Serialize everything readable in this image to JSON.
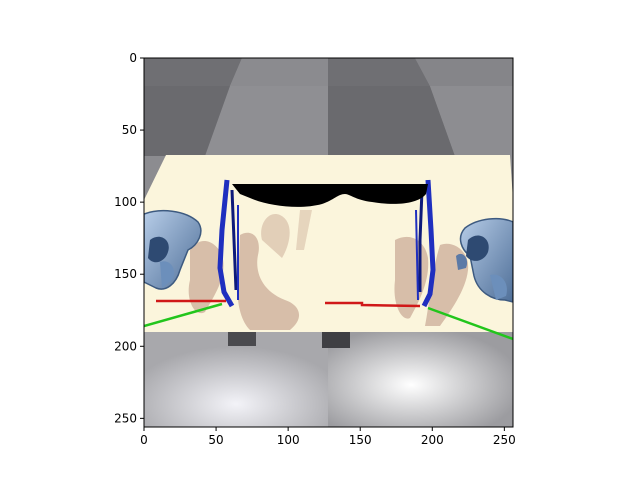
{
  "figure": {
    "x_ticks": [
      {
        "value": 0,
        "label": "0"
      },
      {
        "value": 50,
        "label": "50"
      },
      {
        "value": 100,
        "label": "100"
      },
      {
        "value": 150,
        "label": "150"
      },
      {
        "value": 200,
        "label": "200"
      },
      {
        "value": 250,
        "label": "250"
      }
    ],
    "y_ticks": [
      {
        "value": 0,
        "label": "0"
      },
      {
        "value": 50,
        "label": "50"
      },
      {
        "value": 100,
        "label": "100"
      },
      {
        "value": 150,
        "label": "150"
      },
      {
        "value": 200,
        "label": "200"
      },
      {
        "value": 250,
        "label": "250"
      }
    ],
    "x_range": [
      0,
      256
    ],
    "y_range": [
      0,
      256
    ],
    "colors": {
      "floor_dark": "#6f6f73",
      "floor_light": "#8c8c90",
      "table": "#fbf5dc",
      "shadow": "#d4b9a4",
      "robot_dark": "#5b5d63",
      "arm_blue": "#8fb3dc",
      "gripper_blue": "#1f2fbf",
      "sunglasses": "#000000",
      "red_line": "#d01818",
      "green_line": "#22c51c",
      "lower_panel": "#d9d9de"
    },
    "scene_objects": [
      "sunglasses",
      "left-gripper",
      "right-gripper",
      "left-robot-hand",
      "right-robot-hand",
      "red-line-left",
      "red-line-right",
      "green-line-left",
      "green-line-right"
    ]
  }
}
